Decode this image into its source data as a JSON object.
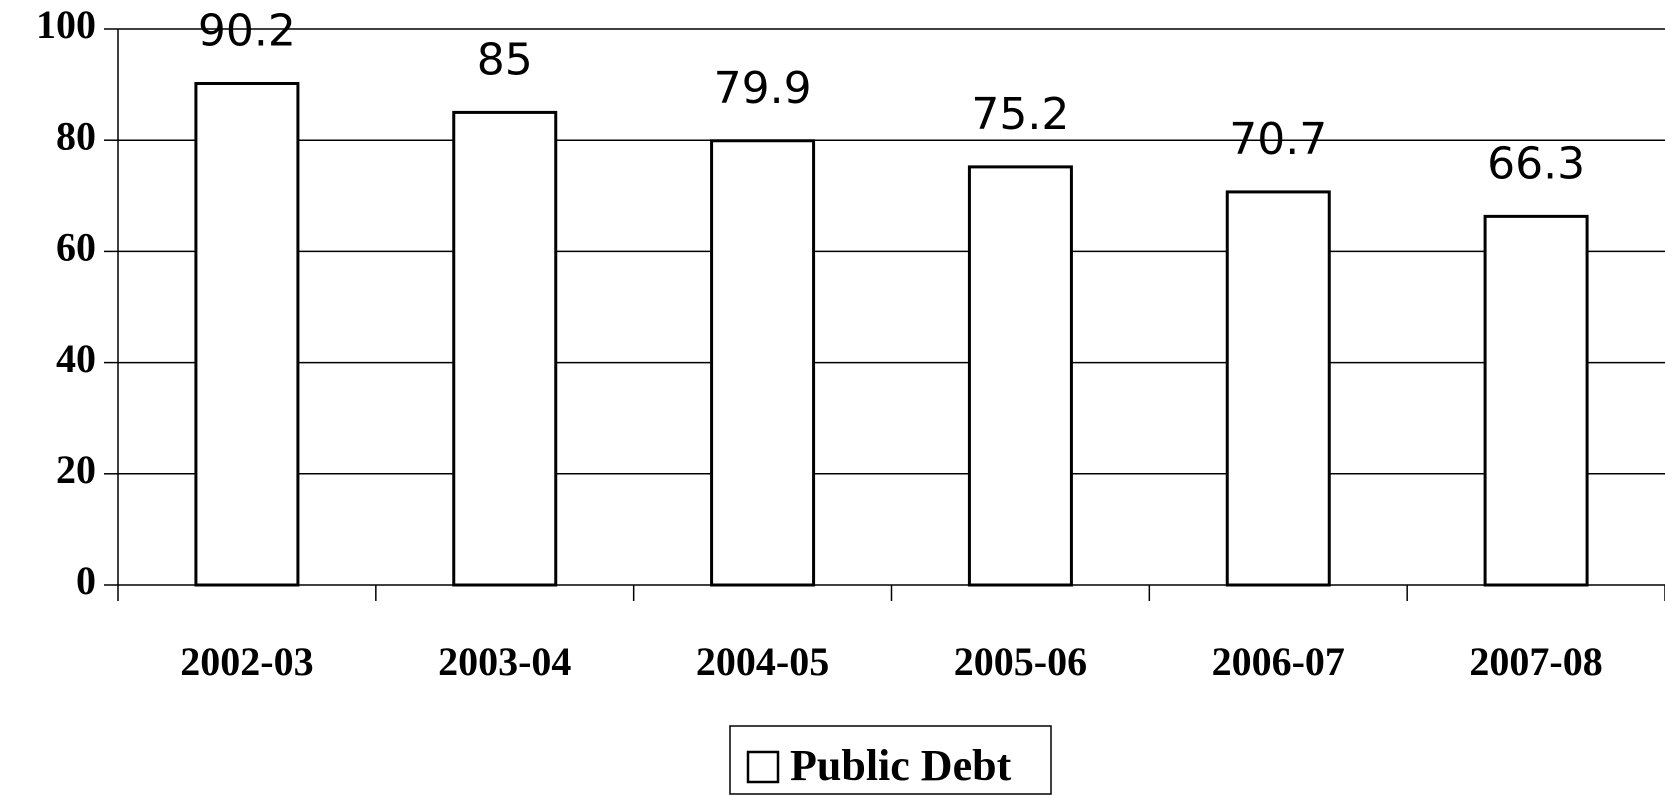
{
  "chart_data": {
    "type": "bar",
    "categories": [
      "2002-03",
      "2003-04",
      "2004-05",
      "2005-06",
      "2006-07",
      "2007-08"
    ],
    "series": [
      {
        "name": "Public Debt",
        "color": "#ffffff",
        "values": [
          90.2,
          85,
          79.9,
          75.2,
          70.7,
          66.3
        ]
      }
    ],
    "ylim": [
      0,
      100
    ],
    "yticks": [
      0,
      20,
      40,
      60,
      80,
      100
    ],
    "grid": true,
    "legend": "bottom"
  }
}
